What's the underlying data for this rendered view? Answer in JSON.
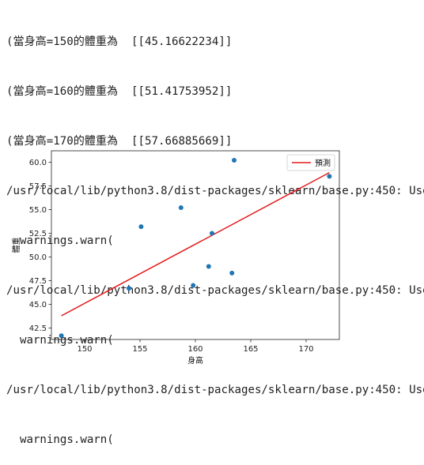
{
  "console": {
    "lines": [
      "(當身高=150的體重為  [[45.16622234]]",
      "(當身高=160的體重為  [[51.41753952]]",
      "(當身高=170的體重為  [[57.66885669]]",
      "/usr/local/lib/python3.8/dist-packages/sklearn/base.py:450: Use",
      "  warnings.warn(",
      "/usr/local/lib/python3.8/dist-packages/sklearn/base.py:450: Use",
      "  warnings.warn(",
      "/usr/local/lib/python3.8/dist-packages/sklearn/base.py:450: Use",
      "  warnings.warn("
    ]
  },
  "chart_data": {
    "type": "scatter",
    "xlabel": "身高",
    "ylabel": "體重",
    "xlim": [
      147,
      173
    ],
    "ylim": [
      41.3,
      61.2
    ],
    "xticks": [
      150,
      155,
      160,
      165,
      170
    ],
    "yticks": [
      42.5,
      45.0,
      47.5,
      50.0,
      52.5,
      55.0,
      57.5,
      60.0
    ],
    "xtick_labels": [
      "150",
      "155",
      "160",
      "165",
      "170"
    ],
    "ytick_labels": [
      "42.5",
      "45.0",
      "47.5",
      "50.0",
      "52.5",
      "55.0",
      "57.5",
      "60.0"
    ],
    "points": [
      {
        "x": 147.9,
        "y": 41.7
      },
      {
        "x": 154.0,
        "y": 46.7
      },
      {
        "x": 155.1,
        "y": 53.2
      },
      {
        "x": 158.7,
        "y": 55.2
      },
      {
        "x": 159.8,
        "y": 47.0
      },
      {
        "x": 161.2,
        "y": 49.0
      },
      {
        "x": 161.5,
        "y": 52.5
      },
      {
        "x": 163.3,
        "y": 48.3
      },
      {
        "x": 163.5,
        "y": 60.2
      },
      {
        "x": 172.1,
        "y": 58.5
      }
    ],
    "regression_line": {
      "x": [
        147.9,
        172.1
      ],
      "y": [
        43.8,
        58.9
      ]
    },
    "legend": {
      "label": "預測",
      "location": "upper right"
    },
    "colors": {
      "points": "#1f77b4",
      "line": "#e41a1c",
      "axes": "#222222"
    }
  }
}
